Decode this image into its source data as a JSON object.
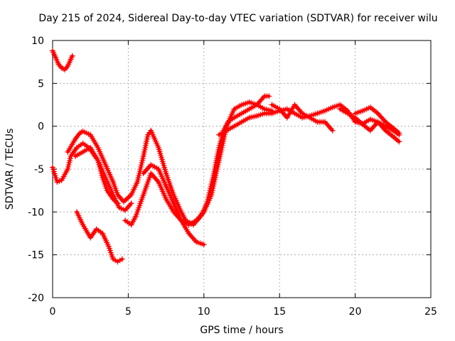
{
  "chart_data": {
    "type": "scatter",
    "title": "Day 215 of 2024, Sidereal Day-to-day VTEC variation (SDTVAR) for receiver wilu",
    "xlabel": "GPS time / hours",
    "ylabel": "SDTVAR / TECUs",
    "xlim": [
      0,
      25
    ],
    "ylim": [
      -20,
      10
    ],
    "xticks": [
      0,
      5,
      10,
      15,
      20,
      25
    ],
    "yticks": [
      -20,
      -15,
      -10,
      -5,
      0,
      5,
      10
    ],
    "grid": true,
    "marker": "+",
    "color": "#ff0000",
    "series": [
      {
        "name": "trace-1",
        "x": [
          0.0,
          0.2,
          0.4,
          0.6,
          0.8,
          1.0,
          1.2,
          1.3
        ],
        "y": [
          8.8,
          8.0,
          7.2,
          6.8,
          6.6,
          7.0,
          7.8,
          8.2
        ]
      },
      {
        "name": "trace-2",
        "x": [
          0.0,
          0.3,
          0.6,
          1.0,
          1.2,
          1.6,
          2.0,
          2.4,
          3.0,
          3.5,
          4.0,
          4.4,
          4.8,
          5.2
        ],
        "y": [
          -4.8,
          -6.5,
          -6.3,
          -5.0,
          -3.5,
          -2.5,
          -2.0,
          -2.5,
          -4.0,
          -6.0,
          -8.0,
          -9.5,
          -9.8,
          -9.0
        ]
      },
      {
        "name": "trace-3",
        "x": [
          1.0,
          1.5,
          1.8,
          2.0,
          2.5,
          3.0,
          3.5,
          4.0,
          4.3,
          4.7,
          5.2,
          5.6,
          6.0,
          6.3,
          6.5,
          7.0,
          7.5,
          8.0,
          8.5,
          8.8
        ],
        "y": [
          -3.0,
          -1.5,
          -0.8,
          -0.6,
          -1.0,
          -2.5,
          -4.5,
          -6.5,
          -8.0,
          -8.8,
          -8.0,
          -6.5,
          -3.5,
          -1.0,
          -0.5,
          -2.5,
          -5.5,
          -8.0,
          -10.0,
          -11.0
        ]
      },
      {
        "name": "trace-4",
        "x": [
          1.5,
          2.0,
          2.5,
          3.0,
          3.3,
          3.6,
          4.0,
          4.3
        ],
        "y": [
          -3.5,
          -3.0,
          -2.5,
          -4.0,
          -6.0,
          -7.5,
          -8.5,
          -9.0
        ]
      },
      {
        "name": "trace-5",
        "x": [
          1.6,
          2.0,
          2.5,
          2.9,
          3.3,
          3.7,
          4.0,
          4.3,
          4.6
        ],
        "y": [
          -10.0,
          -11.5,
          -13.0,
          -12.0,
          -12.5,
          -14.0,
          -15.5,
          -15.8,
          -15.5
        ]
      },
      {
        "name": "trace-6",
        "x": [
          4.8,
          5.2,
          5.5,
          5.8,
          6.2,
          6.5,
          7.0,
          7.5,
          8.0,
          8.5,
          9.0,
          9.5,
          10.0
        ],
        "y": [
          -11.0,
          -11.5,
          -10.5,
          -9.0,
          -7.0,
          -5.5,
          -6.5,
          -8.5,
          -10.0,
          -11.0,
          -11.5,
          -11.0,
          -10.0
        ]
      },
      {
        "name": "trace-7",
        "x": [
          6.0,
          6.5,
          7.0,
          7.5,
          8.0,
          8.5,
          9.0,
          9.5,
          10.0
        ],
        "y": [
          -5.5,
          -4.5,
          -5.0,
          -7.0,
          -9.0,
          -11.0,
          -12.5,
          -13.5,
          -13.8
        ]
      },
      {
        "name": "trace-8",
        "x": [
          8.8,
          9.3,
          9.8,
          10.2,
          10.6,
          11.0,
          11.3,
          11.6,
          12.0,
          12.5,
          13.0,
          13.5,
          14.0,
          14.3
        ],
        "y": [
          -11.0,
          -11.5,
          -10.5,
          -9.0,
          -6.0,
          -2.5,
          -0.5,
          0.5,
          1.0,
          1.5,
          2.0,
          2.5,
          3.5,
          3.5
        ]
      },
      {
        "name": "trace-9",
        "x": [
          9.5,
          10.0,
          10.5,
          11.0,
          11.5,
          12.0,
          12.5,
          13.0,
          13.5,
          14.0,
          14.5
        ],
        "y": [
          -11.0,
          -10.0,
          -8.0,
          -4.0,
          0.0,
          2.0,
          2.5,
          2.8,
          2.5,
          2.0,
          1.8
        ]
      },
      {
        "name": "trace-10",
        "x": [
          11.0,
          11.5,
          12.0,
          12.5,
          13.0,
          13.5,
          14.0,
          14.5,
          15.0,
          15.5,
          16.0,
          16.5,
          17.0,
          17.5,
          18.0,
          18.5,
          19.0,
          19.5,
          20.0,
          20.5,
          21.0,
          21.5,
          22.0,
          22.5,
          22.9
        ],
        "y": [
          -1.0,
          -0.5,
          0.0,
          0.5,
          1.0,
          1.2,
          1.5,
          1.5,
          1.8,
          2.0,
          1.5,
          1.0,
          1.2,
          1.5,
          1.8,
          2.2,
          2.5,
          1.8,
          0.5,
          0.3,
          0.8,
          0.5,
          0.0,
          -0.5,
          -1.0
        ]
      },
      {
        "name": "trace-11",
        "x": [
          14.5,
          15.0,
          15.5,
          16.0,
          16.5,
          17.0,
          17.5,
          18.0,
          18.5
        ],
        "y": [
          2.5,
          2.0,
          1.0,
          2.5,
          1.5,
          1.0,
          0.5,
          0.5,
          -0.5
        ]
      },
      {
        "name": "trace-12",
        "x": [
          19.0,
          19.5,
          20.0,
          20.5,
          21.0,
          21.5,
          22.0,
          22.5,
          22.9
        ],
        "y": [
          2.0,
          1.5,
          1.0,
          0.2,
          -0.5,
          0.5,
          -0.5,
          -1.2,
          -1.8
        ]
      },
      {
        "name": "trace-13",
        "x": [
          20.0,
          20.5,
          21.0,
          21.5,
          22.0,
          22.5,
          22.9
        ],
        "y": [
          1.5,
          1.8,
          2.2,
          1.5,
          0.5,
          -0.2,
          -0.8
        ]
      }
    ]
  }
}
